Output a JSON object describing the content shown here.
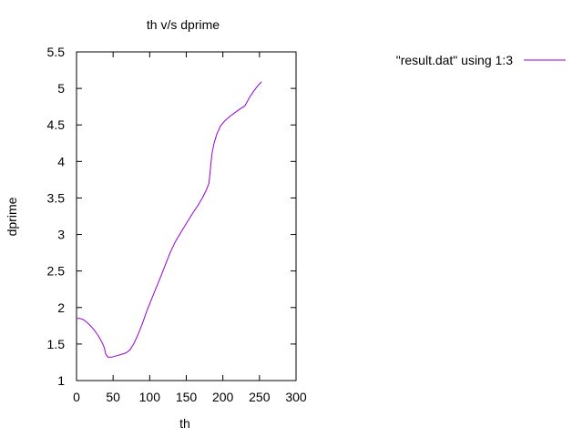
{
  "chart_data": {
    "type": "line",
    "title": "th v/s dprime",
    "xlabel": "th",
    "ylabel": "dprime",
    "xlim": [
      0,
      300
    ],
    "ylim": [
      1,
      5.5
    ],
    "x_ticks": [
      "0",
      "50",
      "100",
      "150",
      "200",
      "250",
      "300"
    ],
    "y_ticks": [
      "1",
      "1.5",
      "2",
      "2.5",
      "3",
      "3.5",
      "4",
      "4.5",
      "5",
      "5.5"
    ],
    "grid": false,
    "legend_position": "top-right",
    "series": [
      {
        "name": "\"result.dat\" using 1:3",
        "color": "#9400d3",
        "points": [
          [
            0,
            1.85
          ],
          [
            5,
            1.85
          ],
          [
            10,
            1.83
          ],
          [
            15,
            1.79
          ],
          [
            20,
            1.74
          ],
          [
            25,
            1.68
          ],
          [
            30,
            1.61
          ],
          [
            35,
            1.52
          ],
          [
            38,
            1.45
          ],
          [
            40,
            1.36
          ],
          [
            43,
            1.32
          ],
          [
            48,
            1.32
          ],
          [
            55,
            1.34
          ],
          [
            62,
            1.36
          ],
          [
            68,
            1.38
          ],
          [
            73,
            1.42
          ],
          [
            78,
            1.5
          ],
          [
            84,
            1.63
          ],
          [
            90,
            1.78
          ],
          [
            96,
            1.95
          ],
          [
            102,
            2.1
          ],
          [
            108,
            2.25
          ],
          [
            115,
            2.42
          ],
          [
            122,
            2.6
          ],
          [
            128,
            2.75
          ],
          [
            135,
            2.9
          ],
          [
            142,
            3.02
          ],
          [
            150,
            3.15
          ],
          [
            158,
            3.28
          ],
          [
            166,
            3.4
          ],
          [
            172,
            3.5
          ],
          [
            177,
            3.6
          ],
          [
            181,
            3.7
          ],
          [
            183,
            3.9
          ],
          [
            185,
            4.1
          ],
          [
            188,
            4.25
          ],
          [
            192,
            4.38
          ],
          [
            197,
            4.49
          ],
          [
            203,
            4.56
          ],
          [
            210,
            4.62
          ],
          [
            218,
            4.68
          ],
          [
            225,
            4.73
          ],
          [
            230,
            4.76
          ],
          [
            236,
            4.87
          ],
          [
            242,
            4.96
          ],
          [
            248,
            5.04
          ],
          [
            253,
            5.09
          ]
        ]
      }
    ]
  }
}
